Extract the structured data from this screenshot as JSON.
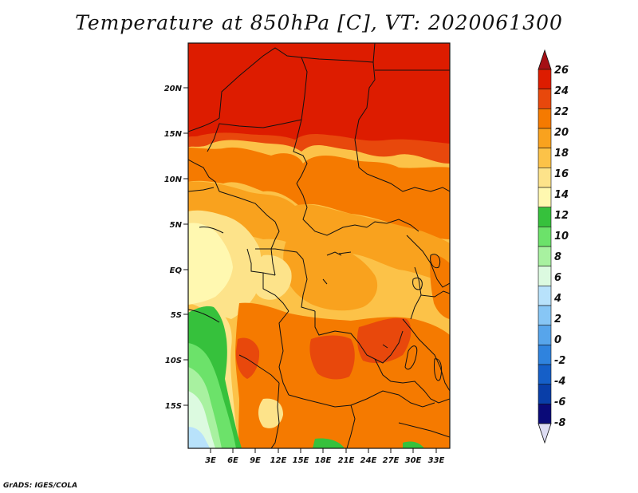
{
  "title": "Temperature at 850hPa [C], VT: 2020061300",
  "credit": "GrADS: IGES/COLA",
  "lat_labels": [
    "20N",
    "15N",
    "10N",
    "5N",
    "EQ",
    "5S",
    "10S",
    "15S"
  ],
  "lon_labels": [
    "3E",
    "6E",
    "9E",
    "12E",
    "15E",
    "18E",
    "21E",
    "24E",
    "27E",
    "30E",
    "33E"
  ],
  "colorbar": {
    "labels": [
      "26",
      "24",
      "22",
      "20",
      "18",
      "16",
      "14",
      "12",
      "10",
      "8",
      "6",
      "4",
      "2",
      "0",
      "-2",
      "-4",
      "-6",
      "-8"
    ],
    "colors": [
      "#a50f15",
      "#dd1c00",
      "#e8480c",
      "#f57a00",
      "#f9a21e",
      "#fcc248",
      "#fde38a",
      "#fff8b0",
      "#36c13c",
      "#6ce26a",
      "#a8f1a0",
      "#dcfae0",
      "#b8e2fb",
      "#87c6f5",
      "#57a5eb",
      "#2f83de",
      "#155fc8",
      "#093ea8",
      "#0a0a78",
      "#dddcf2"
    ]
  }
}
